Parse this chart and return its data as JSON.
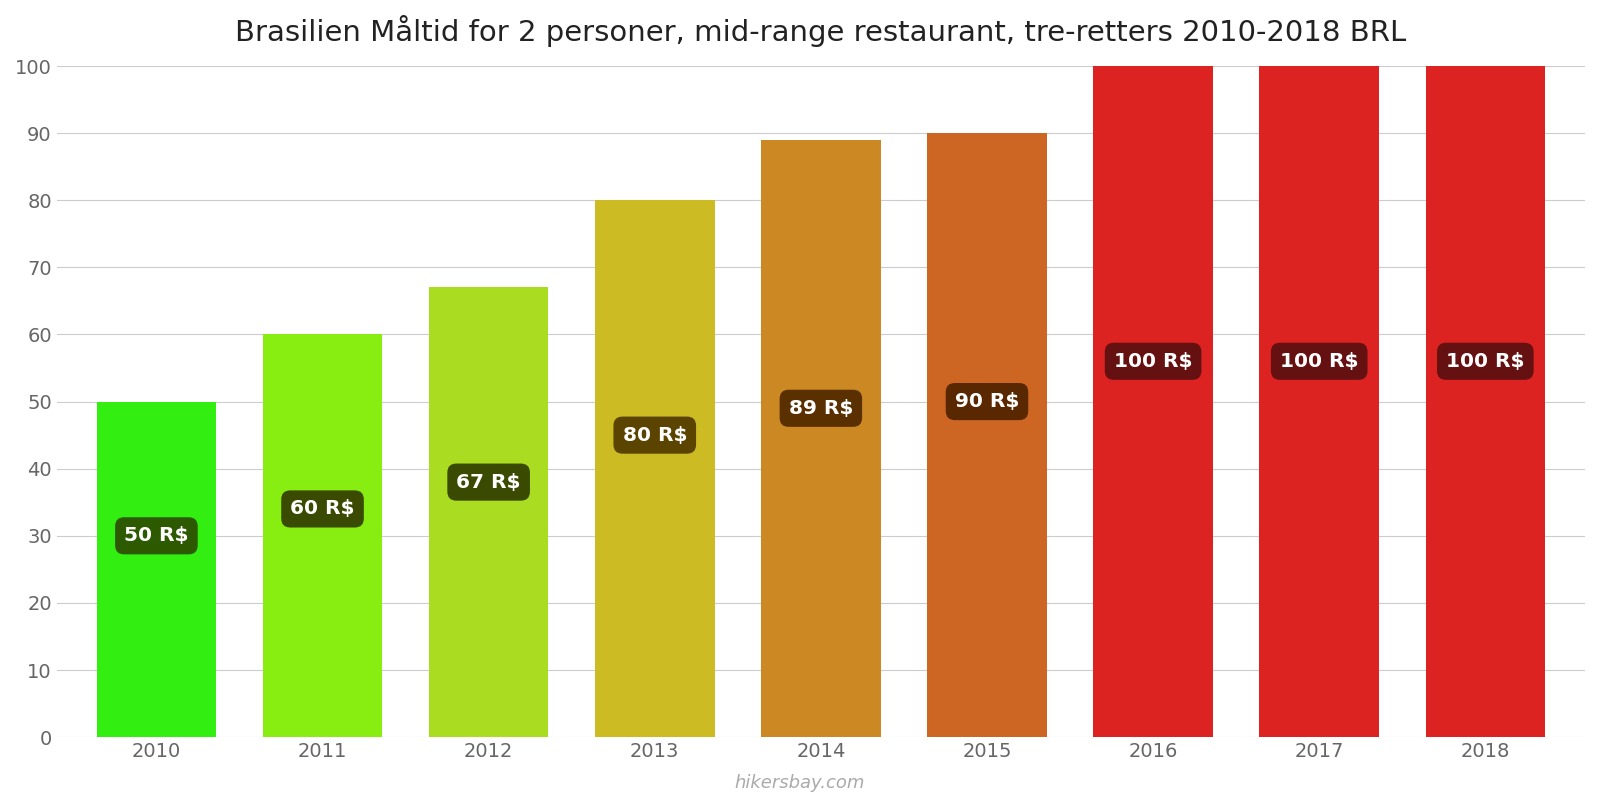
{
  "years": [
    2010,
    2011,
    2012,
    2013,
    2014,
    2015,
    2016,
    2017,
    2018
  ],
  "values": [
    50,
    60,
    67,
    80,
    89,
    90,
    100,
    100,
    100
  ],
  "bar_colors": [
    "#33ee11",
    "#88ee11",
    "#aadd22",
    "#ccbb22",
    "#cc8822",
    "#cc6622",
    "#dd2222",
    "#dd2222",
    "#dd2222"
  ],
  "labels": [
    "50 R$",
    "60 R$",
    "67 R$",
    "80 R$",
    "89 R$",
    "90 R$",
    "100 R$",
    "100 R$",
    "100 R$"
  ],
  "label_box_colors": [
    "#2d5a00",
    "#3a4a00",
    "#3a4a00",
    "#5a4400",
    "#5a3000",
    "#5a2800",
    "#661111",
    "#661111",
    "#661111"
  ],
  "label_y_values": [
    30,
    34,
    38,
    45,
    49,
    50,
    56,
    56,
    56
  ],
  "title": "Brasilien Måltid for 2 personer, mid-range restaurant, tre-retters 2010-2018 BRL",
  "ylim": [
    0,
    100
  ],
  "yticks": [
    0,
    10,
    20,
    30,
    40,
    50,
    60,
    70,
    80,
    90,
    100
  ],
  "background_color": "#ffffff",
  "watermark": "hikersbay.com",
  "title_fontsize": 21,
  "bar_width": 0.72
}
